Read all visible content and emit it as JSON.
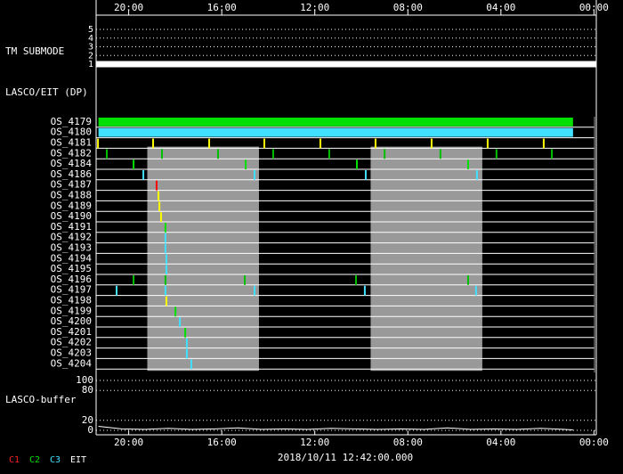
{
  "chart_data": [
    {
      "type": "step",
      "title": "TM SUBMODE",
      "x": [
        21.4,
        -0.1
      ],
      "values": [
        1,
        1
      ],
      "color": "#ffffff",
      "xlim": [
        21.4,
        -0.1
      ],
      "xticks": [
        {
          "value": 20,
          "label": "20:00"
        },
        {
          "value": 16,
          "label": "16:00"
        },
        {
          "value": 12,
          "label": "12:00"
        },
        {
          "value": 8,
          "label": "08:00"
        },
        {
          "value": 4,
          "label": "04:00"
        },
        {
          "value": 0,
          "label": "00:00"
        }
      ],
      "ylim": [
        1,
        5
      ],
      "yticks": [
        1,
        2,
        3,
        4,
        5
      ],
      "grid": true
    },
    {
      "type": "timeline",
      "title": "LASCO/EIT (DP)",
      "xlim": [
        21.4,
        -0.1
      ],
      "shaded": [
        [
          19.2,
          14.4
        ],
        [
          9.6,
          4.8
        ]
      ],
      "shade_color": "#999999",
      "rows": [
        {
          "name": "OS_4179",
          "color": "#00e000",
          "span": true,
          "values": [
            21.3,
            0.9
          ]
        },
        {
          "name": "OS_4180",
          "color": "#40e0ff",
          "span": true,
          "values": [
            21.3,
            0.9
          ]
        },
        {
          "name": "OS_4181",
          "color": "#ffff00",
          "values": [
            21.32,
            18.95,
            16.54,
            14.17,
            11.76,
            9.39,
            6.98,
            4.57,
            2.16
          ]
        },
        {
          "name": "OS_4182",
          "color": "#00c000",
          "values": [
            20.94,
            18.57,
            16.16,
            13.79,
            11.38,
            9.0,
            6.6,
            4.19,
            1.81
          ]
        },
        {
          "name": "OS_4184",
          "color": "#00e000",
          "values": [
            19.79,
            14.97,
            10.19,
            5.41
          ]
        },
        {
          "name": "OS_4186",
          "color": "#40e0ff",
          "values": [
            19.37,
            14.59,
            9.81,
            5.03
          ]
        },
        {
          "name": "OS_4187",
          "color": "#ff0000",
          "values": [
            18.8
          ]
        },
        {
          "name": "OS_4188",
          "color": "#ffff00",
          "values": [
            18.72
          ]
        },
        {
          "name": "OS_4189",
          "color": "#ffff00",
          "values": [
            18.68
          ]
        },
        {
          "name": "OS_4190",
          "color": "#ffff00",
          "values": [
            18.61
          ]
        },
        {
          "name": "OS_4191",
          "color": "#00e000",
          "values": [
            18.42
          ]
        },
        {
          "name": "OS_4192",
          "color": "#40e0ff",
          "values": [
            18.42
          ]
        },
        {
          "name": "OS_4193",
          "color": "#40e0ff",
          "values": [
            18.42
          ]
        },
        {
          "name": "OS_4194",
          "color": "#40e0ff",
          "values": [
            18.38
          ]
        },
        {
          "name": "OS_4195",
          "color": "#40e0ff",
          "values": [
            18.38
          ]
        },
        {
          "name": "OS_4196",
          "color": "#00c000",
          "values": [
            19.79,
            18.42,
            15.01,
            10.23,
            5.41
          ]
        },
        {
          "name": "OS_4197",
          "color": "#40e0ff",
          "values": [
            20.52,
            18.42,
            14.59,
            9.85,
            5.07
          ]
        },
        {
          "name": "OS_4198",
          "color": "#ffff00",
          "values": [
            18.38
          ]
        },
        {
          "name": "OS_4199",
          "color": "#00e000",
          "values": [
            17.99
          ]
        },
        {
          "name": "OS_4200",
          "color": "#40e0ff",
          "values": [
            17.8
          ]
        },
        {
          "name": "OS_4201",
          "color": "#00e000",
          "values": [
            17.57
          ]
        },
        {
          "name": "OS_4202",
          "color": "#40e0ff",
          "values": [
            17.5
          ]
        },
        {
          "name": "OS_4203",
          "color": "#40e0ff",
          "values": [
            17.5
          ]
        },
        {
          "name": "OS_4204",
          "color": "#40e0ff",
          "values": [
            17.31
          ]
        }
      ]
    },
    {
      "type": "line",
      "title": "LASCO-buffer",
      "color": "#ffffff",
      "x": [
        21.3,
        20.3,
        19.3,
        18.3,
        17.3,
        16.3,
        15.3,
        14.3,
        13.3,
        12.3,
        11.3,
        10.3,
        9.3,
        8.3,
        7.3,
        6.3,
        5.3,
        4.3,
        3.3,
        2.3,
        1.3,
        0.9
      ],
      "values": [
        8,
        3,
        2,
        4,
        2,
        3,
        5,
        2,
        3,
        2,
        4,
        3,
        2,
        3,
        2,
        5,
        2,
        3,
        2,
        4,
        2,
        1
      ],
      "xlim": [
        21.4,
        -0.1
      ],
      "xticks": [
        {
          "value": 20,
          "label": "20:00"
        },
        {
          "value": 16,
          "label": "16:00"
        },
        {
          "value": 12,
          "label": "12:00"
        },
        {
          "value": 8,
          "label": "08:00"
        },
        {
          "value": 4,
          "label": "04:00"
        },
        {
          "value": 0,
          "label": "00:00"
        }
      ],
      "ylim": [
        0,
        100
      ],
      "yticks": [
        0,
        20,
        80,
        100
      ],
      "grid": true
    }
  ],
  "timestamp": "2018/10/11 12:42:00.000",
  "legend": [
    {
      "name": "C1",
      "color": "#ff2020"
    },
    {
      "name": "C2",
      "color": "#00e000"
    },
    {
      "name": "C3",
      "color": "#40e0ff"
    },
    {
      "name": "EIT",
      "color": "#ffffff"
    }
  ]
}
